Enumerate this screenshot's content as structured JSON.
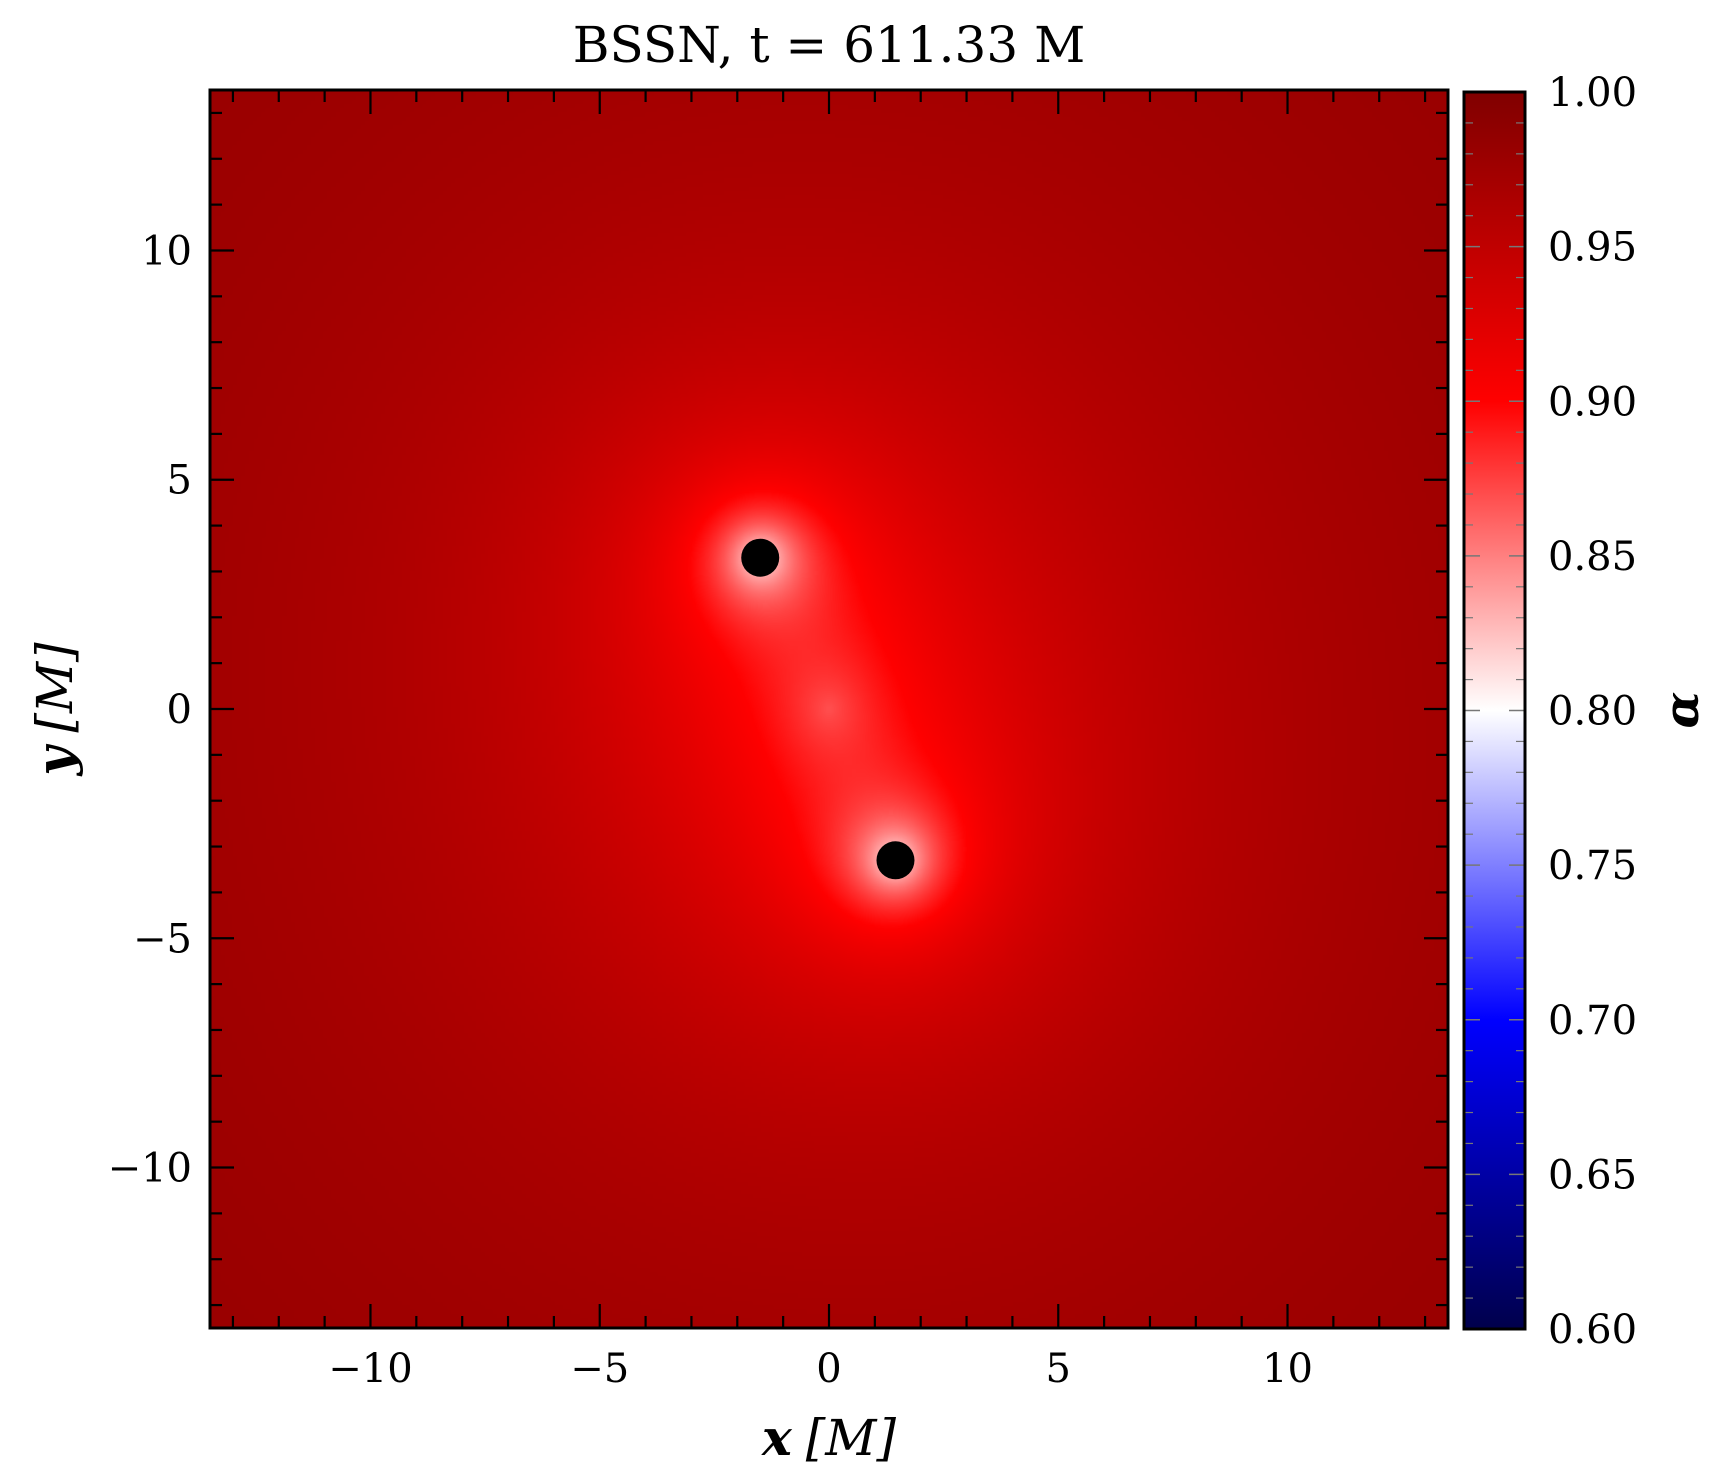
{
  "chart_data": {
    "type": "heatmap",
    "title": "BSSN, t = 611.33 M",
    "xlabel": "x [M]",
    "ylabel": "y [M]",
    "xlabel_var": "x",
    "xlabel_unit": "[M]",
    "ylabel_var": "y",
    "ylabel_unit": "[M]",
    "xlim": [
      -13.5,
      13.5
    ],
    "ylim": [
      -13.5,
      13.5
    ],
    "x_ticks": [
      -10,
      -5,
      0,
      5,
      10
    ],
    "x_tick_labels": [
      "−10",
      "−5",
      "0",
      "5",
      "10"
    ],
    "y_ticks": [
      -10,
      -5,
      0,
      5,
      10
    ],
    "y_tick_labels": [
      "−10",
      "−5",
      "0",
      "5",
      "10"
    ],
    "colorbar": {
      "label": "α",
      "range": [
        0.6,
        1.0
      ],
      "ticks": [
        0.6,
        0.65,
        0.7,
        0.75,
        0.8,
        0.85,
        0.9,
        0.95,
        1.0
      ],
      "tick_labels": [
        "0.60",
        "0.65",
        "0.70",
        "0.75",
        "0.80",
        "0.85",
        "0.90",
        "0.95",
        "1.00"
      ],
      "colormap": "seismic",
      "colormap_stops": [
        {
          "value": 0.6,
          "color": "#00004c"
        },
        {
          "value": 0.7,
          "color": "#0000ff"
        },
        {
          "value": 0.8,
          "color": "#ffffff"
        },
        {
          "value": 0.9,
          "color": "#ff0000"
        },
        {
          "value": 1.0,
          "color": "#800000"
        }
      ]
    },
    "black_holes": [
      {
        "x": -1.5,
        "y": 3.3
      },
      {
        "x": 1.45,
        "y": -3.3
      }
    ],
    "grid": false
  }
}
